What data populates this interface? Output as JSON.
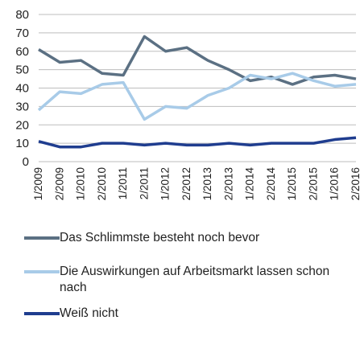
{
  "chart_data": {
    "type": "line",
    "categories": [
      "1/2009",
      "2/2009",
      "1/2010",
      "2/2010",
      "1/2011",
      "2/2011",
      "1/2012",
      "2/2012",
      "1/2013",
      "2/2013",
      "1/2014",
      "2/2014",
      "1/2015",
      "2/2015",
      "1/2016",
      "2/2016"
    ],
    "series": [
      {
        "name": "Das Schlimmste besteht noch bevor",
        "color": "#5b7083",
        "values": [
          61,
          54,
          55,
          48,
          47,
          68,
          60,
          62,
          55,
          50,
          44,
          46,
          42,
          46,
          47,
          45
        ]
      },
      {
        "name": "Die Auswirkungen auf Arbeitsmarkt lassen schon nach",
        "color": "#a8cbe8",
        "values": [
          28,
          38,
          37,
          42,
          43,
          23,
          30,
          29,
          36,
          40,
          47,
          45,
          48,
          44,
          41,
          42
        ]
      },
      {
        "name": "Weiß nicht",
        "color": "#1f3d8f",
        "values": [
          11,
          8,
          8,
          10,
          10,
          9,
          10,
          9,
          9,
          10,
          9,
          10,
          10,
          10,
          12,
          13
        ]
      }
    ],
    "ylim": [
      0,
      80
    ],
    "yticks": [
      0,
      10,
      20,
      30,
      40,
      50,
      60,
      70,
      80
    ],
    "grid": true
  }
}
